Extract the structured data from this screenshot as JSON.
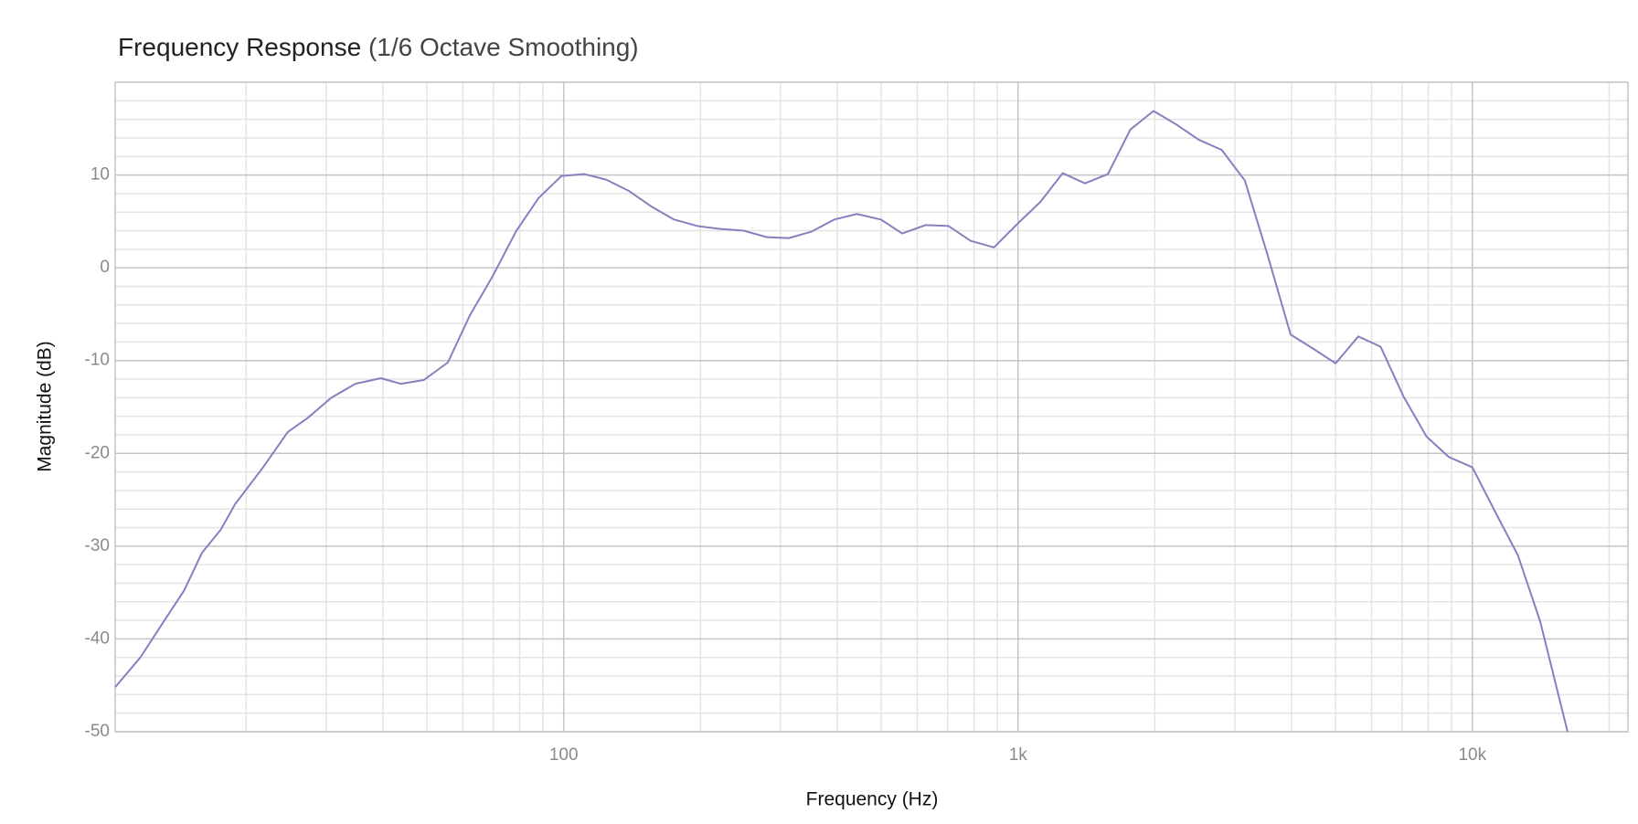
{
  "chart_data": {
    "type": "line",
    "title": "Frequency Response",
    "subtitle": "(1/6 Octave Smoothing)",
    "x_label": "Frequency (Hz)",
    "y_label": "Magnitude (dB)",
    "x_scale": "log",
    "grid": true,
    "xlim": [
      10.3,
      22000
    ],
    "ylim": [
      -50,
      20
    ],
    "xticks": [
      100,
      {
        "value": 1000,
        "label": "1k"
      },
      {
        "value": 10000,
        "label": "10k"
      }
    ],
    "yticks": [
      -50,
      -40,
      -30,
      -20,
      -10,
      0,
      10
    ],
    "x_minor_ticks": [
      20,
      30,
      40,
      50,
      60,
      70,
      80,
      90,
      200,
      300,
      400,
      500,
      600,
      700,
      800,
      900,
      2000,
      3000,
      4000,
      5000,
      6000,
      7000,
      8000,
      9000,
      20000
    ],
    "y_minor_ticks": [
      -48,
      -46,
      -44,
      -42,
      -38,
      -36,
      -34,
      -32,
      -28,
      -26,
      -24,
      -22,
      -18,
      -16,
      -14,
      -12,
      -8,
      -6,
      -4,
      -2,
      2,
      4,
      6,
      8,
      12,
      14,
      16,
      18
    ],
    "x": [
      10.3,
      11.7,
      13.1,
      14.6,
      16.0,
      17.6,
      18.9,
      21.8,
      24.7,
      27.3,
      30.8,
      34.8,
      39.6,
      43.8,
      49.2,
      55.6,
      62.2,
      69.6,
      78.7,
      88.0,
      98.9,
      111,
      124,
      139,
      156,
      175,
      197,
      220,
      249,
      280,
      313,
      351,
      394,
      442,
      499,
      556,
      626,
      703,
      787,
      885,
      1000,
      1120,
      1254,
      1404,
      1577,
      1767,
      1987,
      2222,
      2498,
      2808,
      3157,
      3541,
      3981,
      4457,
      5000,
      5610,
      6280,
      7060,
      7930,
      8880,
      10000,
      11200,
      12600,
      14100,
      16200
    ],
    "series": [
      {
        "name": "Magnitude",
        "color": "#8e7cbf",
        "values": [
          -45.2,
          -42.0,
          -38.3,
          -34.8,
          -30.7,
          -28.2,
          -25.5,
          -21.5,
          -17.7,
          -16.2,
          -14.0,
          -12.5,
          -11.9,
          -12.5,
          -12.1,
          -10.2,
          -5.1,
          -1.0,
          4.0,
          7.5,
          9.9,
          10.1,
          9.5,
          8.3,
          6.6,
          5.2,
          4.5,
          4.2,
          4.0,
          3.3,
          3.2,
          3.9,
          5.2,
          5.8,
          5.2,
          3.7,
          4.6,
          4.5,
          2.9,
          2.2,
          4.8,
          7.1,
          10.2,
          9.1,
          10.1,
          14.9,
          16.9,
          15.5,
          13.8,
          12.7,
          9.4,
          1.4,
          -7.2,
          -8.7,
          -10.3,
          -7.4,
          -8.5,
          -13.9,
          -18.2,
          -20.4,
          -21.5,
          -26.2,
          -31.0,
          -38.1,
          -50.0
        ]
      }
    ]
  }
}
